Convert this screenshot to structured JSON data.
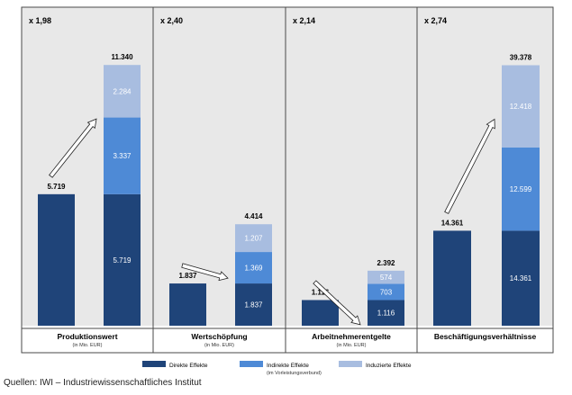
{
  "colors": {
    "direct": "#1f4479",
    "indirect": "#4e8ad6",
    "induced": "#a8bde0",
    "panel_bg": "#e8e8e8",
    "frame": "#4a4a4a"
  },
  "chart_data": {
    "type": "bar",
    "stacked": true,
    "panels": [
      {
        "multiplier": "x 1,98",
        "title": "Produktionswert",
        "unit": "(in Mio. EUR)",
        "direct_total": 5719,
        "direct_label": "5.719",
        "stack": {
          "direct": 5719,
          "indirect": 3337,
          "induced": 2284
        },
        "stack_labels": {
          "direct": "5.719",
          "indirect": "3.337",
          "induced": "2.284"
        },
        "total": 11340,
        "total_label": "11.340",
        "ymax": 12600
      },
      {
        "multiplier": "x 2,40",
        "title": "Wertschöpfung",
        "unit": "(in Mio. EUR)",
        "direct_total": 1837,
        "direct_label": "1.837",
        "stack": {
          "direct": 1837,
          "indirect": 1369,
          "induced": 1207
        },
        "stack_labels": {
          "direct": "1.837",
          "indirect": "1.369",
          "induced": "1.207"
        },
        "total": 4414,
        "total_label": "4.414",
        "ymax": 12600
      },
      {
        "multiplier": "x 2,14",
        "title": "Arbeitnehmerentgelte",
        "unit": "(in Mio. EUR)",
        "direct_total": 1116,
        "direct_label": "1.116",
        "stack": {
          "direct": 1116,
          "indirect": 703,
          "induced": 574
        },
        "stack_labels": {
          "direct": "1.116",
          "indirect": "703",
          "induced": "574"
        },
        "total": 2392,
        "total_label": "2.392",
        "ymax": 12600
      },
      {
        "multiplier": "x 2,74",
        "title": "Beschäftigungsverhältnisse",
        "unit": "",
        "direct_total": 14361,
        "direct_label": "14.361",
        "stack": {
          "direct": 14361,
          "indirect": 12599,
          "induced": 12418
        },
        "stack_labels": {
          "direct": "14.361",
          "indirect": "12.599",
          "induced": "12.418"
        },
        "total": 39378,
        "total_label": "39.378",
        "ymax": 43800
      }
    ],
    "legend": [
      {
        "key": "direct",
        "label": "Direkte Effekte",
        "sub": ""
      },
      {
        "key": "indirect",
        "label": "Indirekte Effekte",
        "sub": "(im Vorleistungsverbund)"
      },
      {
        "key": "induced",
        "label": "Induzierte Effekte",
        "sub": ""
      }
    ],
    "legend_position": "bottom"
  },
  "source": "Quellen: IWI – Industriewissenschaftliches Institut"
}
